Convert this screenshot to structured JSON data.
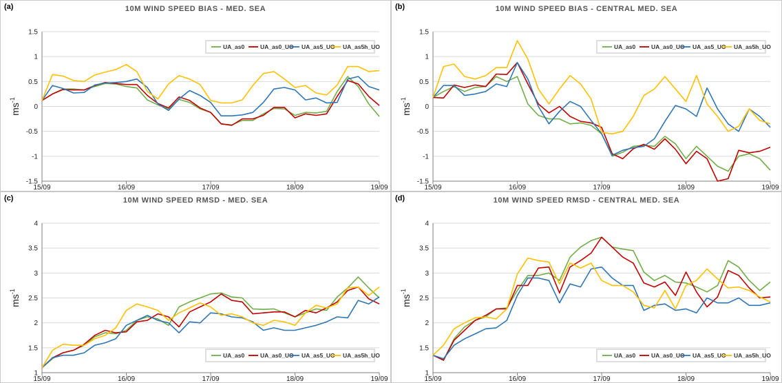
{
  "colors": {
    "UA_as0": "#70ad47",
    "UA_as0_UO": "#c00000",
    "UA_as5_UO": "#2e75b6",
    "UA_as5h_UO": "#ffc000"
  },
  "chart_data": [
    {
      "type": "line",
      "panel_label": "(a)",
      "title": "10M WIND SPEED BIAS - MED. SEA",
      "ylabel": "ms",
      "ylabel_sup": "-1",
      "ylim": [
        -1.5,
        1.5
      ],
      "yticks": [
        "1.5",
        "1",
        "0.5",
        "0",
        "-0.5",
        "-1",
        "-1.5"
      ],
      "ytick_values": [
        1.5,
        1,
        0.5,
        0,
        -0.5,
        -1,
        -1.5
      ],
      "xticks": [
        "15/09",
        "16/09",
        "17/09",
        "18/09",
        "19/09"
      ],
      "x_count": 33,
      "legend_position": "top-right",
      "series": [
        {
          "name": "UA_as0",
          "color": "#70ad47",
          "values": [
            0.12,
            0.25,
            0.35,
            0.35,
            0.33,
            0.4,
            0.46,
            0.45,
            0.4,
            0.37,
            0.13,
            0.03,
            -0.05,
            0.14,
            0.08,
            -0.05,
            -0.12,
            -0.35,
            -0.37,
            -0.28,
            -0.28,
            -0.15,
            -0.04,
            -0.05,
            -0.18,
            -0.12,
            -0.13,
            -0.1,
            0.3,
            0.6,
            0.4,
            0.05,
            -0.2
          ]
        },
        {
          "name": "UA_as0_UO",
          "color": "#c00000",
          "values": [
            0.12,
            0.25,
            0.34,
            0.33,
            0.33,
            0.42,
            0.48,
            0.46,
            0.44,
            0.44,
            0.22,
            0.06,
            -0.03,
            0.19,
            0.12,
            -0.03,
            -0.12,
            -0.35,
            -0.38,
            -0.25,
            -0.25,
            -0.18,
            -0.02,
            -0.02,
            -0.23,
            -0.15,
            -0.18,
            -0.15,
            0.2,
            0.52,
            0.45,
            0.2,
            0.02
          ]
        },
        {
          "name": "UA_as5_UO",
          "color": "#2e75b6",
          "values": [
            0.12,
            0.42,
            0.36,
            0.27,
            0.28,
            0.43,
            0.47,
            0.48,
            0.5,
            0.55,
            0.38,
            0.05,
            -0.08,
            0.15,
            0.32,
            0.22,
            0.08,
            -0.19,
            -0.19,
            -0.17,
            -0.12,
            0.08,
            0.35,
            0.38,
            0.33,
            0.13,
            0.17,
            0.07,
            0.08,
            0.55,
            0.6,
            0.4,
            0.33
          ]
        },
        {
          "name": "UA_as5h_UO",
          "color": "#ffc000",
          "values": [
            0.12,
            0.64,
            0.61,
            0.52,
            0.5,
            0.63,
            0.69,
            0.74,
            0.84,
            0.7,
            0.3,
            0.15,
            0.45,
            0.62,
            0.55,
            0.44,
            0.12,
            0.07,
            0.07,
            0.13,
            0.42,
            0.66,
            0.7,
            0.55,
            0.38,
            0.42,
            0.27,
            0.23,
            0.43,
            0.8,
            0.8,
            0.7,
            0.72
          ]
        }
      ]
    },
    {
      "type": "line",
      "panel_label": "(b)",
      "title": "10M WIND SPEED BIAS - CENTRAL MED. SEA",
      "ylabel": "ms",
      "ylabel_sup": "-1",
      "ylim": [
        -1.5,
        1.5
      ],
      "yticks": [
        "1.5",
        "1",
        "0.5",
        "0",
        "-0.5",
        "-1",
        "-1.5"
      ],
      "ytick_values": [
        1.5,
        1,
        0.5,
        0,
        -0.5,
        -1,
        -1.5
      ],
      "xticks": [
        "15/09",
        "16/09",
        "17/09",
        "18/09",
        "19/09"
      ],
      "x_count": 33,
      "legend_position": "top-right",
      "series": [
        {
          "name": "UA_as0",
          "color": "#70ad47",
          "values": [
            0.18,
            0.3,
            0.4,
            0.3,
            0.38,
            0.4,
            0.6,
            0.5,
            0.6,
            0.05,
            -0.18,
            -0.25,
            -0.25,
            -0.35,
            -0.33,
            -0.38,
            -0.55,
            -1.0,
            -0.92,
            -0.8,
            -0.78,
            -0.8,
            -0.6,
            -0.75,
            -1.05,
            -0.8,
            -1.0,
            -1.2,
            -1.3,
            -1.0,
            -0.95,
            -1.05,
            -1.28
          ]
        },
        {
          "name": "UA_as0_UO",
          "color": "#c00000",
          "values": [
            0.18,
            0.17,
            0.43,
            0.38,
            0.43,
            0.4,
            0.65,
            0.64,
            0.88,
            0.45,
            0.05,
            -0.13,
            0.0,
            -0.2,
            -0.3,
            -0.33,
            -0.42,
            -0.95,
            -1.05,
            -0.85,
            -0.76,
            -0.86,
            -0.65,
            -0.86,
            -1.15,
            -0.9,
            -1.05,
            -1.5,
            -1.45,
            -0.88,
            -0.93,
            -0.9,
            -0.82
          ]
        },
        {
          "name": "UA_as5_UO",
          "color": "#2e75b6",
          "values": [
            0.18,
            0.42,
            0.42,
            0.22,
            0.25,
            0.3,
            0.45,
            0.4,
            0.88,
            0.55,
            0.0,
            -0.35,
            -0.1,
            0.1,
            0.0,
            -0.28,
            -0.55,
            -0.98,
            -0.88,
            -0.83,
            -0.8,
            -0.65,
            -0.3,
            0.02,
            -0.05,
            -0.2,
            0.37,
            -0.05,
            -0.35,
            -0.5,
            -0.05,
            -0.2,
            -0.42
          ]
        },
        {
          "name": "UA_as5h_UO",
          "color": "#ffc000",
          "values": [
            0.18,
            0.8,
            0.85,
            0.6,
            0.55,
            0.62,
            0.78,
            0.78,
            1.32,
            0.95,
            0.35,
            0.05,
            0.35,
            0.62,
            0.45,
            0.15,
            -0.52,
            -0.55,
            -0.5,
            -0.2,
            0.22,
            0.35,
            0.6,
            0.35,
            0.1,
            0.62,
            0.05,
            -0.2,
            -0.5,
            -0.4,
            -0.05,
            -0.28,
            -0.35
          ]
        }
      ]
    },
    {
      "type": "line",
      "panel_label": "(c)",
      "title": "10M WIND SPEED RMSD - MED. SEA",
      "ylabel": "ms",
      "ylabel_sup": "-1",
      "ylim": [
        1,
        4
      ],
      "yticks": [
        "4",
        "3.5",
        "3",
        "2.5",
        "2",
        "1.5",
        "1"
      ],
      "ytick_values": [
        4,
        3.5,
        3,
        2.5,
        2,
        1.5,
        1
      ],
      "xticks": [
        "15/09",
        "16/09",
        "17/09",
        "18/09",
        "19/09"
      ],
      "x_count": 33,
      "legend_position": "bottom-right",
      "series": [
        {
          "name": "UA_as0",
          "color": "#70ad47",
          "values": [
            1.1,
            1.28,
            1.4,
            1.45,
            1.55,
            1.72,
            1.8,
            1.78,
            1.85,
            2.05,
            2.12,
            2.08,
            1.95,
            2.32,
            2.42,
            2.5,
            2.58,
            2.6,
            2.52,
            2.5,
            2.28,
            2.27,
            2.28,
            2.2,
            2.12,
            2.2,
            2.28,
            2.25,
            2.52,
            2.7,
            2.92,
            2.7,
            2.5
          ]
        },
        {
          "name": "UA_as0_UO",
          "color": "#c00000",
          "values": [
            1.1,
            1.3,
            1.4,
            1.45,
            1.57,
            1.75,
            1.85,
            1.8,
            1.82,
            2.02,
            2.05,
            2.18,
            2.12,
            1.92,
            2.22,
            2.32,
            2.42,
            2.58,
            2.45,
            2.42,
            2.18,
            2.2,
            2.22,
            2.22,
            2.12,
            2.25,
            2.2,
            2.3,
            2.42,
            2.65,
            2.72,
            2.48,
            2.38
          ]
        },
        {
          "name": "UA_as5_UO",
          "color": "#2e75b6",
          "values": [
            1.1,
            1.3,
            1.35,
            1.35,
            1.4,
            1.55,
            1.6,
            1.68,
            1.95,
            2.05,
            2.15,
            2.05,
            2.0,
            1.8,
            2.02,
            2.0,
            2.2,
            2.18,
            2.12,
            2.1,
            2.02,
            1.85,
            1.9,
            1.85,
            1.85,
            1.9,
            1.95,
            2.02,
            2.12,
            2.1,
            2.45,
            2.38,
            2.52
          ]
        },
        {
          "name": "UA_as5h_UO",
          "color": "#ffc000",
          "values": [
            1.1,
            1.45,
            1.57,
            1.55,
            1.55,
            1.68,
            1.75,
            1.9,
            2.25,
            2.38,
            2.32,
            2.25,
            2.05,
            2.2,
            2.3,
            2.4,
            2.32,
            2.15,
            2.18,
            2.12,
            2.0,
            1.95,
            2.05,
            2.02,
            1.95,
            2.2,
            2.35,
            2.3,
            2.38,
            2.7,
            2.72,
            2.55,
            2.72
          ]
        }
      ]
    },
    {
      "type": "line",
      "panel_label": "(d)",
      "title": "10M WIND SPEED RMSD - CENTRAL MED. SEA",
      "ylabel": "ms",
      "ylabel_sup": "-1",
      "ylim": [
        1,
        4
      ],
      "yticks": [
        "4",
        "3.5",
        "3",
        "2.5",
        "2",
        "1.5",
        "1"
      ],
      "ytick_values": [
        4,
        3.5,
        3,
        2.5,
        2,
        1.5,
        1
      ],
      "xticks": [
        "15/09",
        "16/09",
        "17/09",
        "18/09",
        "19/09"
      ],
      "x_count": 33,
      "legend_position": "bottom-right",
      "series": [
        {
          "name": "UA_as0",
          "color": "#70ad47",
          "values": [
            1.35,
            1.25,
            1.68,
            1.92,
            2.05,
            2.12,
            2.28,
            2.3,
            2.65,
            2.95,
            2.95,
            3.0,
            2.85,
            3.32,
            3.52,
            3.65,
            3.72,
            3.52,
            3.48,
            3.45,
            3.02,
            2.85,
            2.95,
            2.82,
            2.8,
            2.72,
            2.62,
            2.75,
            3.25,
            3.12,
            2.85,
            2.65,
            2.82
          ]
        },
        {
          "name": "UA_as0_UO",
          "color": "#c00000",
          "values": [
            1.35,
            1.25,
            1.65,
            1.85,
            2.05,
            2.15,
            2.28,
            2.28,
            2.75,
            2.75,
            3.1,
            3.12,
            2.6,
            3.12,
            3.25,
            3.4,
            3.72,
            3.52,
            3.32,
            3.2,
            2.8,
            2.72,
            2.82,
            2.55,
            3.02,
            2.62,
            2.32,
            2.52,
            3.05,
            2.95,
            2.7,
            2.5,
            2.52
          ]
        },
        {
          "name": "UA_as5_UO",
          "color": "#2e75b6",
          "values": [
            1.35,
            1.28,
            1.55,
            1.68,
            1.78,
            1.88,
            1.9,
            2.05,
            2.55,
            2.9,
            2.9,
            2.85,
            2.4,
            2.78,
            2.72,
            3.08,
            3.12,
            2.9,
            2.75,
            2.75,
            2.25,
            2.35,
            2.38,
            2.25,
            2.28,
            2.2,
            2.5,
            2.4,
            2.4,
            2.5,
            2.35,
            2.35,
            2.4
          ]
        },
        {
          "name": "UA_as5h_UO",
          "color": "#ffc000",
          "values": [
            1.35,
            1.55,
            1.88,
            2.0,
            2.1,
            2.12,
            2.08,
            2.28,
            2.98,
            3.3,
            3.25,
            3.22,
            2.78,
            3.2,
            3.1,
            3.2,
            2.85,
            2.75,
            2.75,
            2.62,
            2.35,
            2.3,
            2.65,
            2.28,
            2.75,
            2.85,
            3.08,
            2.88,
            2.7,
            2.72,
            2.65,
            2.52,
            2.42
          ]
        }
      ]
    }
  ]
}
